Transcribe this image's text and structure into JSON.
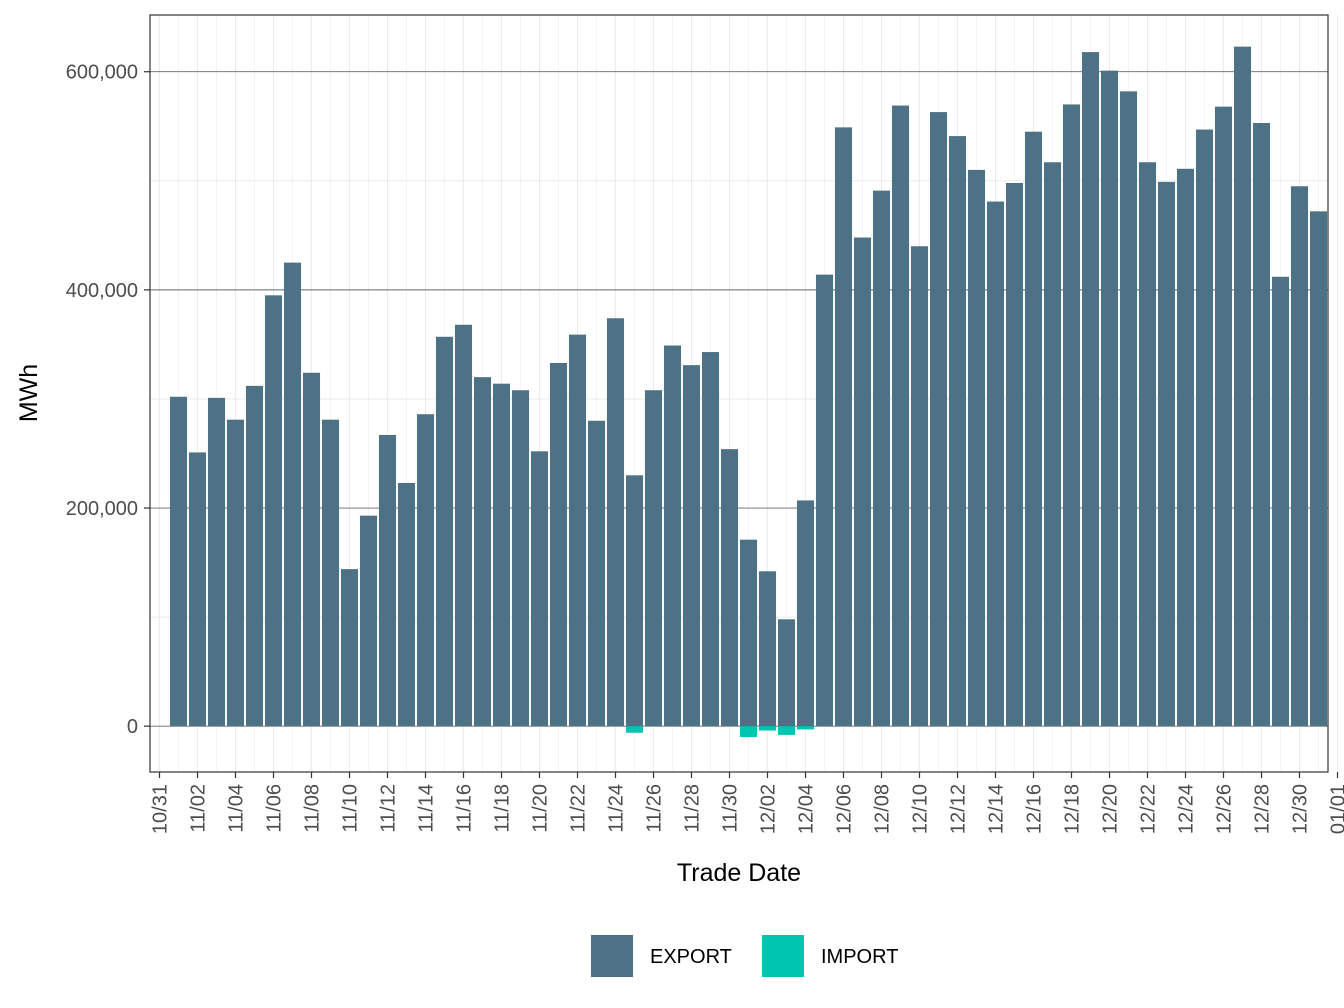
{
  "chart_data": {
    "type": "bar",
    "xlabel": "Trade Date",
    "ylabel": "MWh",
    "ylim": [
      -42000,
      652000
    ],
    "yticks": [
      0,
      200000,
      400000,
      600000
    ],
    "ytick_labels": [
      "0",
      "200,000",
      "400,000",
      "600,000"
    ],
    "xticks": [
      "10/31",
      "11/02",
      "11/04",
      "11/06",
      "11/08",
      "11/10",
      "11/12",
      "11/14",
      "11/16",
      "11/18",
      "11/20",
      "11/22",
      "11/24",
      "11/26",
      "11/28",
      "11/30",
      "12/02",
      "12/04",
      "12/06",
      "12/08",
      "12/10",
      "12/12",
      "12/14",
      "12/16",
      "12/18",
      "12/20",
      "12/22",
      "12/24",
      "12/26",
      "12/28",
      "12/30",
      "01/01"
    ],
    "grid": true,
    "legend_position": "bottom",
    "categories": [
      "11/01",
      "11/02",
      "11/03",
      "11/04",
      "11/05",
      "11/06",
      "11/07",
      "11/08",
      "11/09",
      "11/10",
      "11/11",
      "11/12",
      "11/13",
      "11/14",
      "11/15",
      "11/16",
      "11/17",
      "11/18",
      "11/19",
      "11/20",
      "11/21",
      "11/22",
      "11/23",
      "11/24",
      "11/25",
      "11/26",
      "11/27",
      "11/28",
      "11/29",
      "11/30",
      "12/01",
      "12/02",
      "12/03",
      "12/04",
      "12/05",
      "12/06",
      "12/07",
      "12/08",
      "12/09",
      "12/10",
      "12/11",
      "12/12",
      "12/13",
      "12/14",
      "12/15",
      "12/16",
      "12/17",
      "12/18",
      "12/19",
      "12/20",
      "12/21",
      "12/22",
      "12/23",
      "12/24",
      "12/25",
      "12/26",
      "12/27",
      "12/28",
      "12/29",
      "12/30",
      "12/31"
    ],
    "series": [
      {
        "name": "EXPORT",
        "color": "#4e7285",
        "values": [
          302000,
          251000,
          301000,
          281000,
          312000,
          395000,
          425000,
          324000,
          281000,
          144000,
          193000,
          267000,
          223000,
          286000,
          357000,
          368000,
          320000,
          314000,
          308000,
          252000,
          333000,
          359000,
          280000,
          374000,
          230000,
          308000,
          349000,
          331000,
          343000,
          254000,
          171000,
          142000,
          98000,
          207000,
          414000,
          549000,
          448000,
          491000,
          569000,
          440000,
          563000,
          541000,
          510000,
          481000,
          498000,
          545000,
          517000,
          570000,
          618000,
          601000,
          582000,
          517000,
          499000,
          511000,
          547000,
          568000,
          623000,
          553000,
          412000,
          495000,
          472000
        ]
      },
      {
        "name": "IMPORT",
        "color": "#00c5b0",
        "values": [
          0,
          0,
          0,
          0,
          0,
          0,
          0,
          0,
          0,
          0,
          0,
          0,
          0,
          0,
          0,
          0,
          0,
          0,
          0,
          0,
          0,
          0,
          0,
          0,
          -6000,
          0,
          0,
          0,
          0,
          0,
          -10000,
          -4000,
          -8000,
          -3000,
          0,
          0,
          0,
          0,
          0,
          0,
          0,
          0,
          0,
          0,
          0,
          0,
          0,
          0,
          0,
          0,
          0,
          0,
          0,
          0,
          0,
          0,
          0,
          0,
          0,
          0,
          0
        ]
      }
    ]
  }
}
